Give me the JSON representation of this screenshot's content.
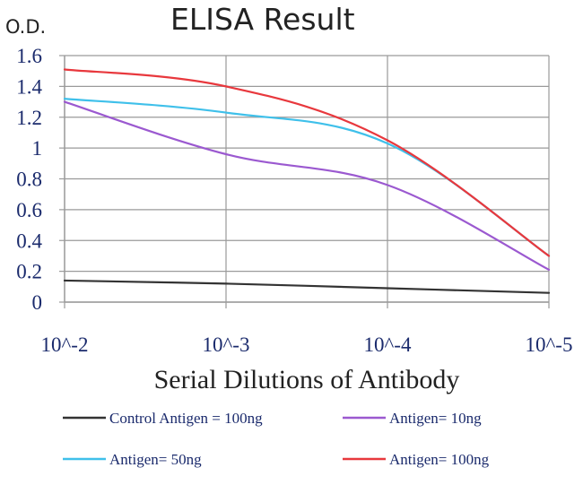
{
  "chart_data": {
    "type": "line",
    "title": "ELISA Result",
    "ylabel": "O.D.",
    "xlabel": "Serial Dilutions of Antibody",
    "x_ticks": [
      "10^-2",
      "10^-3",
      "10^-4",
      "10^-5"
    ],
    "y_ticks": [
      "0",
      "0.2",
      "0.4",
      "0.6",
      "0.8",
      "1",
      "1.2",
      "1.4",
      "1.6"
    ],
    "ylim": [
      0,
      1.6
    ],
    "grid": true,
    "legend_placement": "bottom",
    "series": [
      {
        "name": "Control Antigen = 100ng",
        "color": "#333333",
        "values": [
          0.14,
          0.12,
          0.09,
          0.06
        ]
      },
      {
        "name": "Antigen= 10ng",
        "color": "#9b59d0",
        "values": [
          1.3,
          0.96,
          0.76,
          0.21
        ]
      },
      {
        "name": "Antigen= 50ng",
        "color": "#3fc0ea",
        "values": [
          1.32,
          1.23,
          1.03,
          0.3
        ]
      },
      {
        "name": "Antigen= 100ng",
        "color": "#e8383d",
        "values": [
          1.51,
          1.4,
          1.05,
          0.3
        ]
      }
    ]
  }
}
